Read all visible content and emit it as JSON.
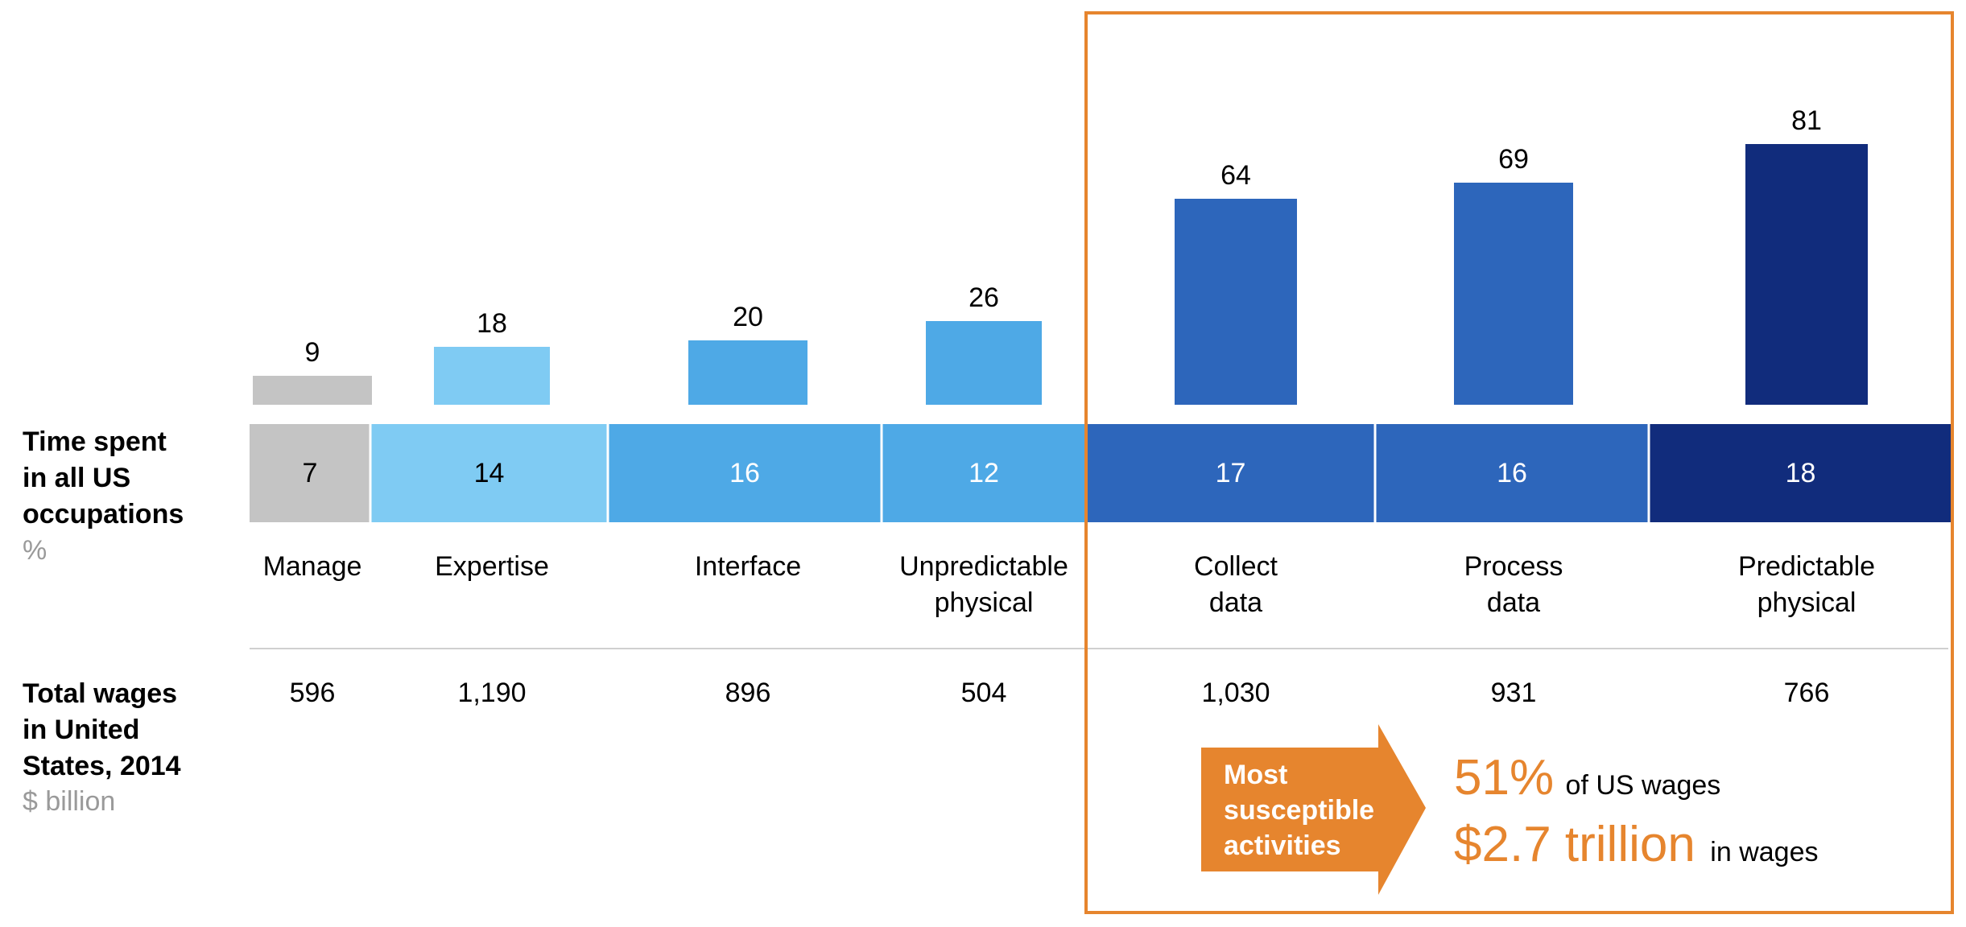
{
  "chart_data": {
    "type": "bar",
    "categories": [
      "Manage",
      "Expertise",
      "Interface",
      "Unpredictable physical",
      "Collect data",
      "Process data",
      "Predictable physical"
    ],
    "category_lines": [
      [
        "Manage"
      ],
      [
        "Expertise"
      ],
      [
        "Interface"
      ],
      [
        "Unpredictable",
        "physical"
      ],
      [
        "Collect",
        "data"
      ],
      [
        "Process",
        "data"
      ],
      [
        "Predictable",
        "physical"
      ]
    ],
    "values": [
      9,
      18,
      20,
      26,
      64,
      69,
      81
    ],
    "value_labels": [
      "9",
      "18",
      "20",
      "26",
      "64",
      "69",
      "81"
    ],
    "time_spent_pct": [
      7,
      14,
      16,
      12,
      17,
      16,
      18
    ],
    "time_spent_labels": [
      "7",
      "14",
      "16",
      "12",
      "17",
      "16",
      "18"
    ],
    "total_wages_billion": [
      596,
      1190,
      896,
      504,
      1030,
      931,
      766
    ],
    "total_wages_labels": [
      "596",
      "1,190",
      "896",
      "504",
      "1,030",
      "931",
      "766"
    ],
    "ylim": [
      0,
      100
    ],
    "grid": false,
    "legend": "none"
  },
  "colors": {
    "gray": "#C4C4C4",
    "light_blue": "#7FCBF3",
    "mid_blue": "#4EA9E6",
    "blue": "#2D66BB",
    "navy": "#112C7C",
    "orange": "#E6852E",
    "muted_text": "#9A9A9A",
    "divider": "#D0D0D0",
    "category_colors": [
      "#C4C4C4",
      "#7FCBF3",
      "#4EA9E6",
      "#4EA9E6",
      "#2D66BB",
      "#2D66BB",
      "#112C7C"
    ]
  },
  "rows": {
    "time_spent": {
      "lines": [
        "Time spent",
        "in all US",
        "occupations"
      ],
      "unit": "%"
    },
    "total_wages": {
      "lines": [
        "Total wages",
        "in United",
        "States, 2014"
      ],
      "unit": "$ billion"
    }
  },
  "callout": {
    "arrow_lines": [
      "Most",
      "susceptible",
      "activities"
    ],
    "stat1_value": "51%",
    "stat1_text": "of US wages",
    "stat2_value": "$2.7 trillion",
    "stat2_text": "in wages"
  }
}
